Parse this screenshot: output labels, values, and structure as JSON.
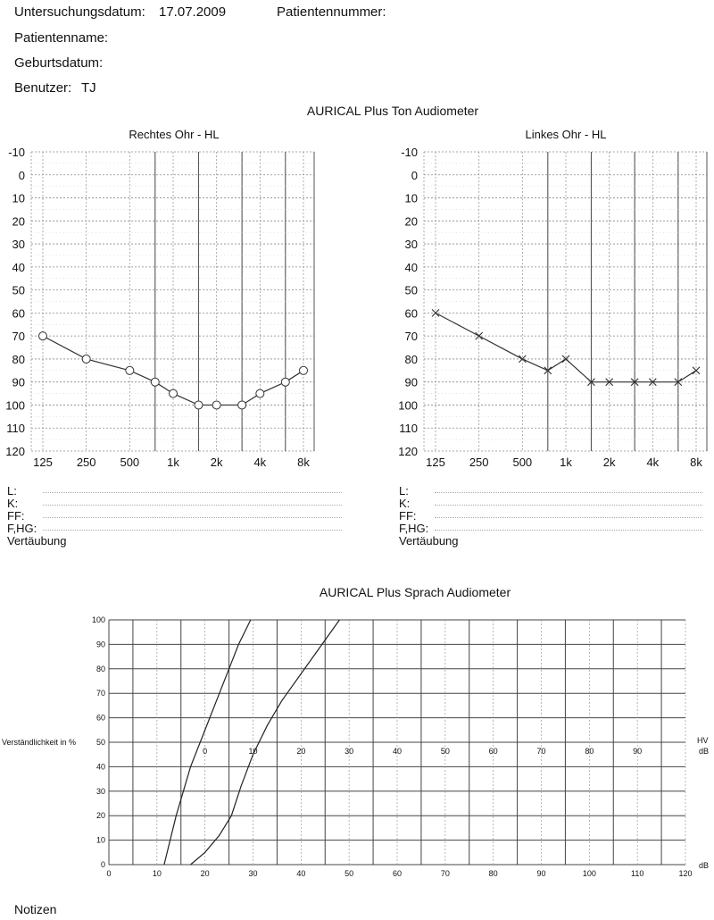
{
  "header": {
    "exam_date_label": "Untersuchungsdatum:",
    "exam_date_value": "17.07.2009",
    "patient_number_label": "Patientennummer:",
    "patient_name_label": "Patientenname:",
    "birth_date_label": "Geburtsdatum:",
    "user_label": "Benutzer:",
    "user_value": "TJ"
  },
  "tone_audiometer_title": "AURICAL Plus Ton Audiometer",
  "speech_audiometer_title": "AURICAL Plus Sprach Audiometer",
  "right_ear": {
    "title": "Rechtes Ohr - HL",
    "legend": [
      "L:",
      "K:",
      "FF:",
      "F,HG:",
      "Vertäubung"
    ]
  },
  "left_ear": {
    "title": "Linkes Ohr - HL",
    "legend": [
      "L:",
      "K:",
      "FF:",
      "F,HG:",
      "Vertäubung"
    ]
  },
  "notes_label": "Notizen",
  "chart_data": [
    {
      "type": "line",
      "title": "Rechtes Ohr - HL",
      "x_tick_labels": [
        "125",
        "250",
        "500",
        "1k",
        "2k",
        "4k",
        "8k"
      ],
      "y_tick_labels": [
        "-10",
        "0",
        "10",
        "20",
        "30",
        "40",
        "50",
        "60",
        "70",
        "80",
        "90",
        "100",
        "110",
        "120"
      ],
      "ylim": [
        -10,
        120
      ],
      "y_inverted": true,
      "x_scale": "log",
      "marker": "circle",
      "color": "#333333",
      "series": [
        {
          "x": [
            125,
            250,
            500,
            750,
            1000,
            1500,
            2000,
            3000,
            4000,
            6000,
            8000
          ],
          "y": [
            70,
            80,
            85,
            90,
            95,
            100,
            100,
            100,
            95,
            90,
            85
          ]
        }
      ]
    },
    {
      "type": "line",
      "title": "Linkes Ohr - HL",
      "x_tick_labels": [
        "125",
        "250",
        "500",
        "1k",
        "2k",
        "4k",
        "8k"
      ],
      "y_tick_labels": [
        "-10",
        "0",
        "10",
        "20",
        "30",
        "40",
        "50",
        "60",
        "70",
        "80",
        "90",
        "100",
        "110",
        "120"
      ],
      "ylim": [
        -10,
        120
      ],
      "y_inverted": true,
      "x_scale": "log",
      "marker": "x",
      "color": "#333333",
      "series": [
        {
          "x": [
            125,
            250,
            500,
            750,
            1000,
            1500,
            2000,
            3000,
            4000,
            6000,
            8000
          ],
          "y": [
            60,
            70,
            80,
            85,
            80,
            90,
            90,
            90,
            90,
            90,
            85
          ]
        }
      ]
    },
    {
      "type": "line",
      "title": "AURICAL Plus Sprach Audiometer",
      "ylabel": "Verständlichkeit in %",
      "xlabel": "dB",
      "hv_label": "HV",
      "hv_unit": "dB",
      "x_tick_labels": [
        "0",
        "10",
        "20",
        "30",
        "40",
        "50",
        "60",
        "70",
        "80",
        "90",
        "100",
        "110",
        "120"
      ],
      "hv_tick_labels": [
        "0",
        "10",
        "20",
        "30",
        "40",
        "50",
        "60",
        "70",
        "80",
        "90"
      ],
      "y_tick_labels": [
        "0",
        "10",
        "20",
        "30",
        "40",
        "50",
        "60",
        "70",
        "80",
        "90",
        "100"
      ],
      "xlim": [
        0,
        120
      ],
      "ylim": [
        0,
        100
      ],
      "series": [
        {
          "x": [
            11.5,
            14,
            17,
            19,
            21,
            23,
            25,
            27,
            29.5
          ],
          "y": [
            0,
            20,
            40,
            50,
            60,
            70,
            80,
            90,
            100
          ]
        },
        {
          "x": [
            17,
            20,
            23,
            25.5,
            27.5,
            30,
            33,
            36,
            40,
            44,
            48
          ],
          "y": [
            0,
            5,
            12,
            20,
            32,
            45,
            57,
            67,
            78,
            89,
            100
          ]
        }
      ]
    }
  ]
}
